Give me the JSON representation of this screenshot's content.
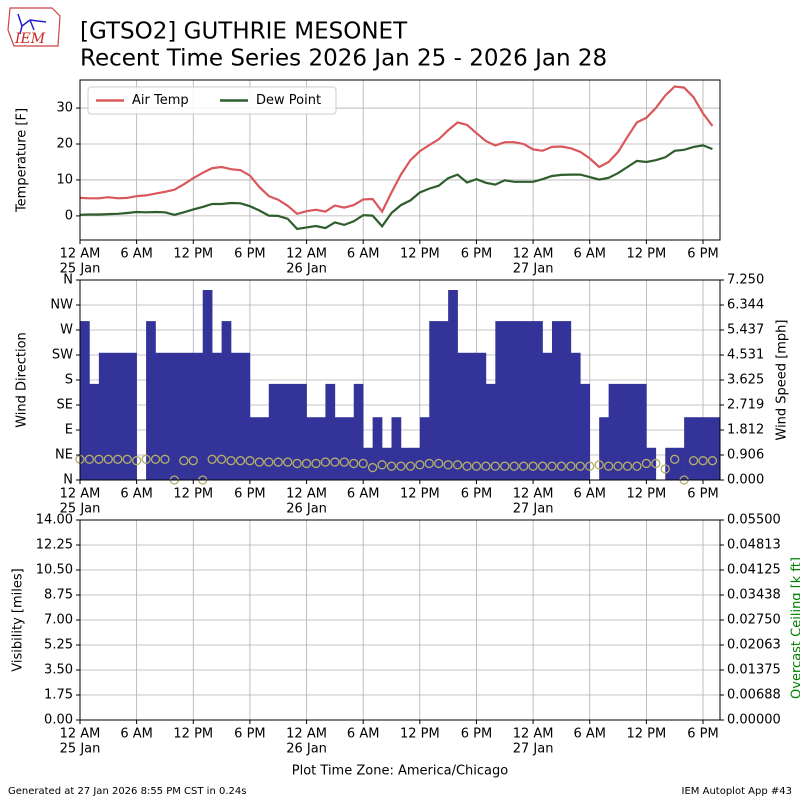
{
  "header": {
    "logo_text": "IEM",
    "title": "[GTSO2] GUTHRIE MESONET",
    "subtitle": "Recent Time Series 2026 Jan 25 - 2026 Jan 28"
  },
  "footer": {
    "left": "Generated at 27 Jan 2026 8:55 PM CST in 0.24s",
    "right": "IEM Autoplot App #43"
  },
  "chart_data": [
    {
      "type": "line",
      "ylabel": "Temperature [F]",
      "grid": true,
      "legend": "upper left",
      "x": [
        0,
        1,
        2,
        3,
        4,
        5,
        6,
        7,
        8,
        9,
        10,
        11,
        12,
        13,
        14,
        15,
        16,
        17,
        18,
        19,
        20,
        21,
        22,
        23,
        24,
        25,
        26,
        27,
        28,
        29,
        30,
        31,
        32,
        33,
        34,
        35,
        36,
        37,
        38,
        39,
        40,
        41,
        42,
        43,
        44,
        45,
        46,
        47,
        48,
        49,
        50,
        51,
        52,
        53,
        54,
        55,
        56,
        57,
        58,
        59,
        60,
        61,
        62,
        63,
        64,
        65,
        66,
        67
      ],
      "xlim": [
        0,
        67.8
      ],
      "xticks": [
        {
          "value": 0,
          "label": "12 AM",
          "sublabel": "25 Jan"
        },
        {
          "value": 6,
          "label": "6 AM"
        },
        {
          "value": 12,
          "label": "12 PM"
        },
        {
          "value": 18,
          "label": "6 PM"
        },
        {
          "value": 24,
          "label": "12 AM",
          "sublabel": "26 Jan"
        },
        {
          "value": 30,
          "label": "6 AM"
        },
        {
          "value": 36,
          "label": "12 PM"
        },
        {
          "value": 42,
          "label": "6 PM"
        },
        {
          "value": 48,
          "label": "12 AM",
          "sublabel": "27 Jan"
        },
        {
          "value": 54,
          "label": "6 AM"
        },
        {
          "value": 60,
          "label": "12 PM"
        },
        {
          "value": 66,
          "label": "6 PM"
        }
      ],
      "ylim": [
        -6.7,
        37.8
      ],
      "yticks": [
        0,
        10,
        20,
        30
      ],
      "series": [
        {
          "name": "Air Temp",
          "color": "#d9585b",
          "values": [
            5.0,
            4.9,
            4.9,
            5.2,
            4.9,
            5.0,
            5.5,
            5.7,
            6.2,
            6.7,
            7.3,
            8.8,
            10.5,
            12,
            13.3,
            13.6,
            13.0,
            12.7,
            11.2,
            8.0,
            5.5,
            4.5,
            2.8,
            0.6,
            1.3,
            1.7,
            1.2,
            2.9,
            2.3,
            3.0,
            4.6,
            4.7,
            1.2,
            6.5,
            11.5,
            15.5,
            18,
            19.7,
            21.3,
            23.8,
            26,
            25.3,
            23,
            20.8,
            19.6,
            20.5,
            20.5,
            20,
            18.5,
            18.1,
            19.2,
            19.3,
            18.8,
            17.8,
            16,
            13.6,
            15,
            17.8,
            22,
            26,
            27.3,
            30,
            33.5,
            36,
            35.7,
            33,
            28.5,
            25
          ]
        },
        {
          "name": "Dew Point",
          "color": "#2e5e2e",
          "values": [
            0.3,
            0.4,
            0.4,
            0.5,
            0.6,
            0.8,
            1.1,
            1.0,
            1.1,
            1.0,
            0.3,
            1.0,
            1.8,
            2.5,
            3.3,
            3.3,
            3.6,
            3.5,
            2.7,
            1.5,
            0.1,
            0.0,
            -0.8,
            -3.6,
            -3.2,
            -2.8,
            -3.4,
            -1.8,
            -2.5,
            -1.5,
            0.2,
            0.1,
            -2.9,
            0.8,
            3.0,
            4.3,
            6.5,
            7.6,
            8.4,
            10.5,
            11.5,
            9.3,
            10.2,
            9.2,
            8.7,
            9.9,
            9.5,
            9.5,
            9.5,
            10.2,
            11.1,
            11.4,
            11.5,
            11.5,
            10.8,
            10.1,
            10.6,
            11.9,
            13.6,
            15.3,
            15.0,
            15.5,
            16.3,
            18.1,
            18.4,
            19.2,
            19.6,
            18.6
          ]
        }
      ]
    },
    {
      "type": "bar",
      "ylabel": "Wind Direction",
      "y2label": "Wind Speed [mph]",
      "grid": true,
      "x": [
        0,
        1,
        2,
        3,
        4,
        5,
        6,
        7,
        8,
        9,
        10,
        11,
        12,
        13,
        14,
        15,
        16,
        17,
        18,
        19,
        20,
        21,
        22,
        23,
        24,
        25,
        26,
        27,
        28,
        29,
        30,
        31,
        32,
        33,
        34,
        35,
        36,
        37,
        38,
        39,
        40,
        41,
        42,
        43,
        44,
        45,
        46,
        47,
        48,
        49,
        50,
        51,
        52,
        53,
        54,
        55,
        56,
        57,
        58,
        59,
        60,
        61,
        62,
        63,
        64,
        65,
        66,
        67
      ],
      "xlim": [
        0,
        67.8
      ],
      "xticks": [
        {
          "value": 0,
          "label": "12 AM",
          "sublabel": "25 Jan"
        },
        {
          "value": 6,
          "label": "6 AM"
        },
        {
          "value": 12,
          "label": "12 PM"
        },
        {
          "value": 18,
          "label": "6 PM"
        },
        {
          "value": 24,
          "label": "12 AM",
          "sublabel": "26 Jan"
        },
        {
          "value": 30,
          "label": "6 AM"
        },
        {
          "value": 36,
          "label": "12 PM"
        },
        {
          "value": 42,
          "label": "6 PM"
        },
        {
          "value": 48,
          "label": "12 AM",
          "sublabel": "27 Jan"
        },
        {
          "value": 54,
          "label": "6 AM"
        },
        {
          "value": 60,
          "label": "12 PM"
        },
        {
          "value": 66,
          "label": "6 PM"
        }
      ],
      "ylim": [
        0,
        360
      ],
      "yticks": [
        {
          "value": 0,
          "label": "N"
        },
        {
          "value": 45,
          "label": "NE"
        },
        {
          "value": 90,
          "label": "E"
        },
        {
          "value": 135,
          "label": "SE"
        },
        {
          "value": 180,
          "label": "S"
        },
        {
          "value": 225,
          "label": "SW"
        },
        {
          "value": 270,
          "label": "W"
        },
        {
          "value": 315,
          "label": "NW"
        },
        {
          "value": 360,
          "label": "N"
        }
      ],
      "y2lim": [
        0,
        7.25
      ],
      "y2ticks": [
        {
          "value": 0,
          "label": "0.000"
        },
        {
          "value": 0.90625,
          "label": "0.906"
        },
        {
          "value": 1.8125,
          "label": "1.812"
        },
        {
          "value": 2.71875,
          "label": "2.719"
        },
        {
          "value": 3.625,
          "label": "3.625"
        },
        {
          "value": 4.53125,
          "label": "4.531"
        },
        {
          "value": 5.4375,
          "label": "5.437"
        },
        {
          "value": 6.34375,
          "label": "6.344"
        },
        {
          "value": 7.25,
          "label": "7.250"
        }
      ],
      "series": [
        {
          "type": "bar",
          "color": "#333399",
          "values": [
            286,
            173,
            229,
            229,
            229,
            229,
            0,
            286,
            229,
            229,
            229,
            229,
            229,
            342,
            229,
            286,
            229,
            229,
            113,
            113,
            173,
            173,
            173,
            173,
            113,
            113,
            173,
            113,
            113,
            173,
            58,
            113,
            58,
            113,
            58,
            58,
            113,
            286,
            286,
            342,
            229,
            229,
            229,
            173,
            286,
            286,
            286,
            286,
            286,
            229,
            286,
            286,
            229,
            173,
            0,
            113,
            173,
            173,
            173,
            173,
            58,
            0,
            58,
            58,
            113,
            113,
            113,
            113
          ]
        },
        {
          "type": "scatter",
          "axis": "y2",
          "color": "#b5ad6a",
          "values": [
            0.75,
            0.75,
            0.75,
            0.75,
            0.75,
            0.75,
            0.7,
            0.75,
            0.75,
            0.75,
            0.0,
            0.7,
            0.7,
            0.0,
            0.75,
            0.75,
            0.7,
            0.7,
            0.7,
            0.65,
            0.65,
            0.65,
            0.65,
            0.6,
            0.6,
            0.6,
            0.65,
            0.65,
            0.65,
            0.6,
            0.6,
            0.45,
            0.55,
            0.5,
            0.5,
            0.5,
            0.55,
            0.6,
            0.6,
            0.55,
            0.55,
            0.5,
            0.5,
            0.5,
            0.5,
            0.5,
            0.5,
            0.5,
            0.5,
            0.5,
            0.5,
            0.5,
            0.5,
            0.5,
            0.5,
            0.55,
            0.5,
            0.5,
            0.5,
            0.5,
            0.6,
            0.6,
            0.4,
            0.75,
            0.0,
            0.7,
            0.7,
            0.7
          ]
        }
      ]
    },
    {
      "type": "line",
      "ylabel": "Visibility [miles]",
      "y2label": "Overcast Ceiling [k ft]",
      "y2label_color": "#008000",
      "xlabel": "Plot Time Zone: America/Chicago",
      "grid": true,
      "xlim": [
        0,
        67.8
      ],
      "xticks": [
        {
          "value": 0,
          "label": "12 AM",
          "sublabel": "25 Jan"
        },
        {
          "value": 6,
          "label": "6 AM"
        },
        {
          "value": 12,
          "label": "12 PM"
        },
        {
          "value": 18,
          "label": "6 PM"
        },
        {
          "value": 24,
          "label": "12 AM",
          "sublabel": "26 Jan"
        },
        {
          "value": 30,
          "label": "6 AM"
        },
        {
          "value": 36,
          "label": "12 PM"
        },
        {
          "value": 42,
          "label": "6 PM"
        },
        {
          "value": 48,
          "label": "12 AM",
          "sublabel": "27 Jan"
        },
        {
          "value": 54,
          "label": "6 AM"
        },
        {
          "value": 60,
          "label": "12 PM"
        },
        {
          "value": 66,
          "label": "6 PM"
        }
      ],
      "ylim": [
        0,
        14
      ],
      "yticks": [
        {
          "value": 0,
          "label": "0.00"
        },
        {
          "value": 1.75,
          "label": "1.75"
        },
        {
          "value": 3.5,
          "label": "3.50"
        },
        {
          "value": 5.25,
          "label": "5.25"
        },
        {
          "value": 7,
          "label": "7.00"
        },
        {
          "value": 8.75,
          "label": "8.75"
        },
        {
          "value": 10.5,
          "label": "10.50"
        },
        {
          "value": 12.25,
          "label": "12.25"
        },
        {
          "value": 14,
          "label": "14.00"
        }
      ],
      "y2lim": [
        0,
        0.055
      ],
      "y2ticks": [
        {
          "value": 0,
          "label": "0.00000"
        },
        {
          "value": 0.006875,
          "label": "0.00688"
        },
        {
          "value": 0.01375,
          "label": "0.01375"
        },
        {
          "value": 0.020625,
          "label": "0.02063"
        },
        {
          "value": 0.0275,
          "label": "0.02750"
        },
        {
          "value": 0.034375,
          "label": "0.03438"
        },
        {
          "value": 0.04125,
          "label": "0.04125"
        },
        {
          "value": 0.048125,
          "label": "0.04813"
        },
        {
          "value": 0.055,
          "label": "0.05500"
        }
      ]
    }
  ]
}
